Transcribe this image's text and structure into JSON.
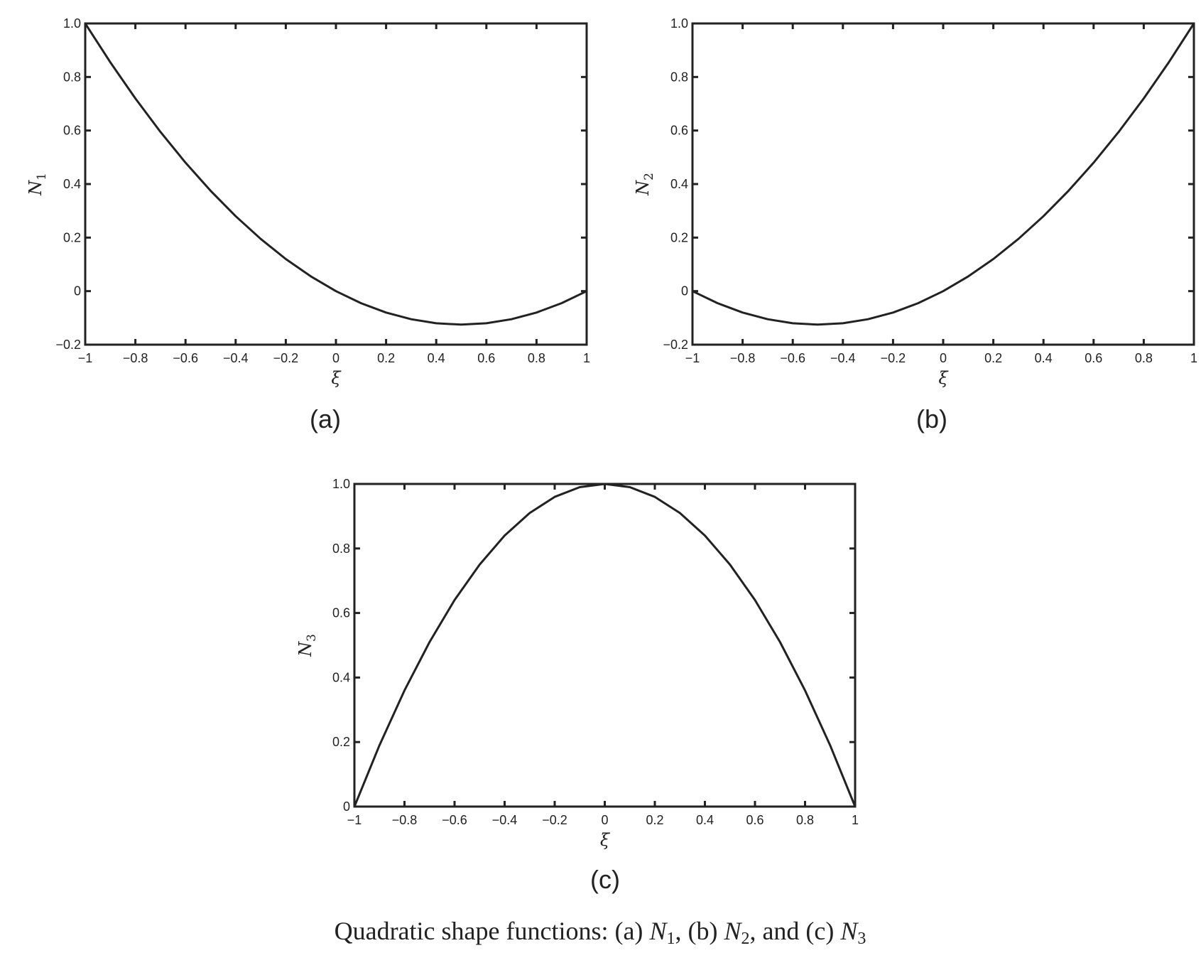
{
  "chart_data": [
    {
      "type": "line",
      "panel_label": "(a)",
      "xlabel": "ξ",
      "ylabel": "N",
      "ylabel_sub": "1",
      "xlim": [
        -1,
        1
      ],
      "ylim": [
        -0.2,
        1.0
      ],
      "xticks": [
        "−1",
        "−0.8",
        "−0.6",
        "−0.4",
        "−0.2",
        "0",
        "0.2",
        "0.4",
        "0.6",
        "0.8",
        "1"
      ],
      "yticks": [
        "−0.2",
        "0",
        "0.2",
        "0.4",
        "0.6",
        "0.8",
        "1.0"
      ],
      "x": [
        -1,
        -0.9,
        -0.8,
        -0.7,
        -0.6,
        -0.5,
        -0.4,
        -0.3,
        -0.2,
        -0.1,
        0,
        0.1,
        0.2,
        0.3,
        0.4,
        0.5,
        0.6,
        0.7,
        0.8,
        0.9,
        1
      ],
      "y": [
        1,
        0.855,
        0.72,
        0.595,
        0.48,
        0.375,
        0.28,
        0.195,
        0.12,
        0.055,
        0,
        -0.045,
        -0.08,
        -0.105,
        -0.12,
        -0.125,
        -0.12,
        -0.105,
        -0.08,
        -0.045,
        0
      ]
    },
    {
      "type": "line",
      "panel_label": "(b)",
      "xlabel": "ξ",
      "ylabel": "N",
      "ylabel_sub": "2",
      "xlim": [
        -1,
        1
      ],
      "ylim": [
        -0.2,
        1.0
      ],
      "xticks": [
        "−1",
        "−0.8",
        "−0.6",
        "−0.4",
        "−0.2",
        "0",
        "0.2",
        "0.4",
        "0.6",
        "0.8",
        "1"
      ],
      "yticks": [
        "−0.2",
        "0",
        "0.2",
        "0.4",
        "0.6",
        "0.8",
        "1.0"
      ],
      "x": [
        -1,
        -0.9,
        -0.8,
        -0.7,
        -0.6,
        -0.5,
        -0.4,
        -0.3,
        -0.2,
        -0.1,
        0,
        0.1,
        0.2,
        0.3,
        0.4,
        0.5,
        0.6,
        0.7,
        0.8,
        0.9,
        1
      ],
      "y": [
        0,
        -0.045,
        -0.08,
        -0.105,
        -0.12,
        -0.125,
        -0.12,
        -0.105,
        -0.08,
        -0.045,
        0,
        0.055,
        0.12,
        0.195,
        0.28,
        0.375,
        0.48,
        0.595,
        0.72,
        0.855,
        1
      ]
    },
    {
      "type": "line",
      "panel_label": "(c)",
      "xlabel": "ξ",
      "ylabel": "N",
      "ylabel_sub": "3",
      "xlim": [
        -1,
        1
      ],
      "ylim": [
        0,
        1.0
      ],
      "xticks": [
        "−1",
        "−0.8",
        "−0.6",
        "−0.4",
        "−0.2",
        "0",
        "0.2",
        "0.4",
        "0.6",
        "0.8",
        "1"
      ],
      "yticks": [
        "0",
        "0.2",
        "0.4",
        "0.6",
        "0.8",
        "1.0"
      ],
      "x": [
        -1,
        -0.9,
        -0.8,
        -0.7,
        -0.6,
        -0.5,
        -0.4,
        -0.3,
        -0.2,
        -0.1,
        0,
        0.1,
        0.2,
        0.3,
        0.4,
        0.5,
        0.6,
        0.7,
        0.8,
        0.9,
        1
      ],
      "y": [
        0,
        0.19,
        0.36,
        0.51,
        0.64,
        0.75,
        0.84,
        0.91,
        0.96,
        0.99,
        1,
        0.99,
        0.96,
        0.91,
        0.84,
        0.75,
        0.64,
        0.51,
        0.36,
        0.19,
        0
      ]
    }
  ],
  "caption": {
    "prefix": "Quadratic shape functions: (a) ",
    "n1": "N",
    "n1_sub": "1",
    "mid1": ", (b) ",
    "n2": "N",
    "n2_sub": "2",
    "mid2": ", and (c) ",
    "n3": "N",
    "n3_sub": "3"
  }
}
